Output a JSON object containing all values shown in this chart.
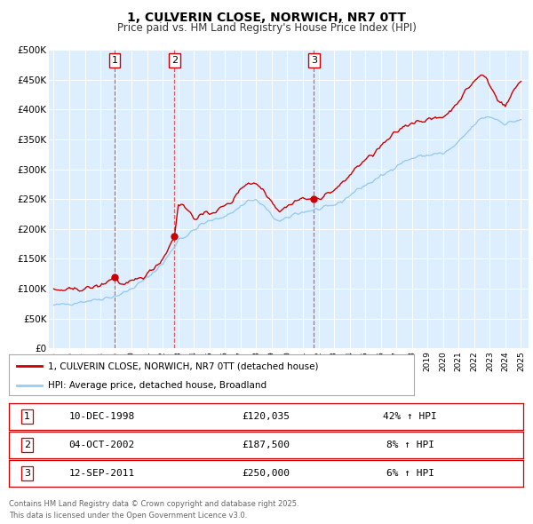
{
  "title": "1, CULVERIN CLOSE, NORWICH, NR7 0TT",
  "subtitle": "Price paid vs. HM Land Registry's House Price Index (HPI)",
  "hpi_label": "HPI: Average price, detached house, Broadland",
  "price_label": "1, CULVERIN CLOSE, NORWICH, NR7 0TT (detached house)",
  "price_color": "#cc0000",
  "hpi_color": "#99ccee",
  "bg_color": "#ffffff",
  "plot_bg_color": "#ddeeff",
  "grid_color": "#ffffff",
  "ylim": [
    0,
    500000
  ],
  "xlim_start": 1994.7,
  "xlim_end": 2025.5,
  "sale_markers": [
    {
      "label": 1,
      "date_str": "10-DEC-1998",
      "price": 120035,
      "pct": "42%",
      "year": 1998.92
    },
    {
      "label": 2,
      "date_str": "04-OCT-2002",
      "price": 187500,
      "pct": "8%",
      "year": 2002.75
    },
    {
      "label": 3,
      "date_str": "12-SEP-2011",
      "price": 250000,
      "pct": "6%",
      "year": 2011.7
    }
  ],
  "footer_line1": "Contains HM Land Registry data © Crown copyright and database right 2025.",
  "footer_line2": "This data is licensed under the Open Government Licence v3.0.",
  "yticks": [
    0,
    50000,
    100000,
    150000,
    200000,
    250000,
    300000,
    350000,
    400000,
    450000,
    500000
  ],
  "ytick_labels": [
    "£0",
    "£50K",
    "£100K",
    "£150K",
    "£200K",
    "£250K",
    "£300K",
    "£350K",
    "£400K",
    "£450K",
    "£500K"
  ],
  "hpi_ctrl": [
    [
      1995.0,
      72000
    ],
    [
      1996.0,
      75000
    ],
    [
      1997.0,
      79000
    ],
    [
      1998.0,
      83000
    ],
    [
      1999.0,
      88000
    ],
    [
      1999.5,
      93000
    ],
    [
      2000.0,
      100000
    ],
    [
      2001.0,
      118000
    ],
    [
      2002.0,
      142000
    ],
    [
      2002.75,
      170000
    ],
    [
      2003.0,
      183000
    ],
    [
      2003.5,
      188000
    ],
    [
      2004.0,
      198000
    ],
    [
      2004.5,
      208000
    ],
    [
      2005.0,
      213000
    ],
    [
      2005.5,
      217000
    ],
    [
      2006.0,
      222000
    ],
    [
      2006.5,
      228000
    ],
    [
      2007.0,
      238000
    ],
    [
      2007.5,
      248000
    ],
    [
      2008.0,
      248000
    ],
    [
      2008.5,
      238000
    ],
    [
      2009.0,
      222000
    ],
    [
      2009.5,
      212000
    ],
    [
      2010.0,
      218000
    ],
    [
      2010.5,
      226000
    ],
    [
      2011.0,
      228000
    ],
    [
      2011.7,
      232000
    ],
    [
      2012.0,
      233000
    ],
    [
      2012.5,
      236000
    ],
    [
      2013.0,
      240000
    ],
    [
      2013.5,
      246000
    ],
    [
      2014.0,
      256000
    ],
    [
      2014.5,
      266000
    ],
    [
      2015.0,
      273000
    ],
    [
      2015.5,
      280000
    ],
    [
      2016.0,
      288000
    ],
    [
      2016.5,
      296000
    ],
    [
      2017.0,
      306000
    ],
    [
      2017.5,
      313000
    ],
    [
      2018.0,
      318000
    ],
    [
      2018.5,
      322000
    ],
    [
      2019.0,
      323000
    ],
    [
      2019.5,
      326000
    ],
    [
      2020.0,
      326000
    ],
    [
      2020.5,
      334000
    ],
    [
      2021.0,
      345000
    ],
    [
      2021.5,
      360000
    ],
    [
      2022.0,
      374000
    ],
    [
      2022.5,
      386000
    ],
    [
      2023.0,
      388000
    ],
    [
      2023.5,
      383000
    ],
    [
      2024.0,
      376000
    ],
    [
      2024.5,
      380000
    ],
    [
      2025.0,
      383000
    ]
  ],
  "price_ctrl": [
    [
      1995.0,
      97000
    ],
    [
      1996.0,
      98000
    ],
    [
      1997.0,
      100000
    ],
    [
      1998.0,
      105000
    ],
    [
      1998.92,
      120035
    ],
    [
      1999.3,
      108000
    ],
    [
      1999.5,
      106000
    ],
    [
      2000.0,
      111000
    ],
    [
      2001.0,
      124000
    ],
    [
      2002.0,
      150000
    ],
    [
      2002.75,
      187500
    ],
    [
      2003.0,
      242000
    ],
    [
      2003.3,
      240000
    ],
    [
      2003.8,
      226000
    ],
    [
      2004.0,
      218000
    ],
    [
      2004.5,
      223000
    ],
    [
      2005.0,
      227000
    ],
    [
      2005.5,
      231000
    ],
    [
      2006.0,
      239000
    ],
    [
      2006.5,
      247000
    ],
    [
      2007.0,
      269000
    ],
    [
      2007.5,
      277000
    ],
    [
      2008.0,
      276000
    ],
    [
      2008.5,
      265000
    ],
    [
      2009.0,
      246000
    ],
    [
      2009.5,
      230000
    ],
    [
      2010.0,
      238000
    ],
    [
      2010.5,
      247000
    ],
    [
      2011.0,
      251000
    ],
    [
      2011.7,
      250000
    ],
    [
      2012.0,
      252000
    ],
    [
      2012.5,
      258000
    ],
    [
      2013.0,
      265000
    ],
    [
      2013.5,
      275000
    ],
    [
      2014.0,
      290000
    ],
    [
      2014.5,
      305000
    ],
    [
      2015.0,
      315000
    ],
    [
      2015.5,
      325000
    ],
    [
      2016.0,
      338000
    ],
    [
      2016.5,
      350000
    ],
    [
      2017.0,
      362000
    ],
    [
      2017.5,
      372000
    ],
    [
      2018.0,
      378000
    ],
    [
      2018.5,
      382000
    ],
    [
      2019.0,
      382000
    ],
    [
      2019.5,
      385000
    ],
    [
      2020.0,
      388000
    ],
    [
      2020.5,
      398000
    ],
    [
      2021.0,
      415000
    ],
    [
      2021.5,
      432000
    ],
    [
      2022.0,
      448000
    ],
    [
      2022.5,
      458000
    ],
    [
      2022.8,
      452000
    ],
    [
      2023.0,
      440000
    ],
    [
      2023.5,
      418000
    ],
    [
      2024.0,
      405000
    ],
    [
      2024.5,
      430000
    ],
    [
      2025.0,
      450000
    ]
  ]
}
